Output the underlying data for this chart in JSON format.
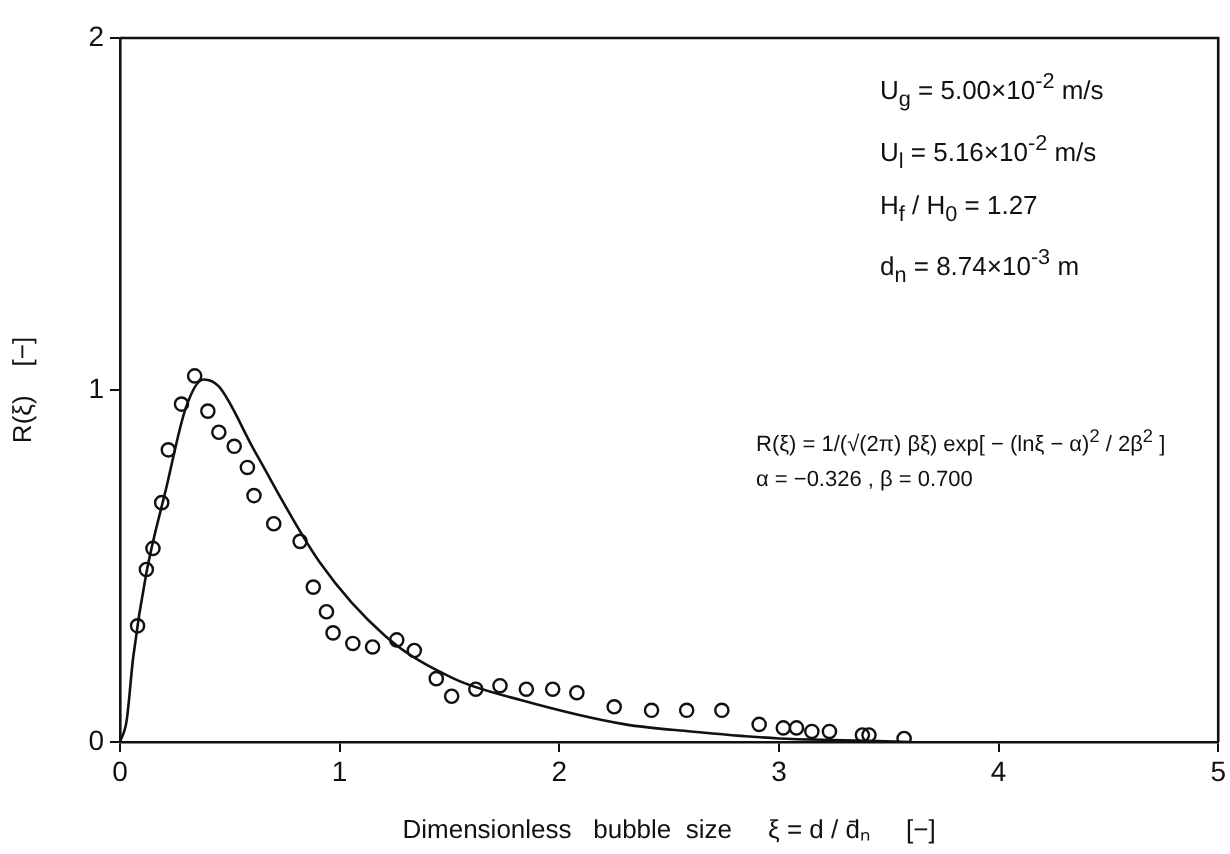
{
  "chart_data": {
    "type": "scatter",
    "xlabel": "Dimensionless   bubble  size     ξ = d / d̄ₙ     [−]",
    "ylabel": "R(ξ)    [−]",
    "xlim": [
      0,
      5
    ],
    "ylim": [
      0,
      2
    ],
    "xticks": [
      0,
      1,
      2,
      3,
      4,
      5
    ],
    "yticks": [
      0,
      1,
      2
    ],
    "grid": false,
    "legend": false,
    "marker": "circle",
    "series": [
      {
        "color": "#111111",
        "x": [
          0.08,
          0.12,
          0.15,
          0.19,
          0.22,
          0.28,
          0.34,
          0.4,
          0.45,
          0.52,
          0.58,
          0.61,
          0.7,
          0.82,
          0.88,
          0.94,
          0.97,
          1.06,
          1.15,
          1.26,
          1.34,
          1.44,
          1.51,
          1.62,
          1.73,
          1.85,
          1.97,
          2.08,
          2.25,
          2.42,
          2.58,
          2.74,
          2.91,
          3.02,
          3.08,
          3.15,
          3.23,
          3.38,
          3.41,
          3.57
        ],
        "values": [
          0.33,
          0.49,
          0.55,
          0.68,
          0.83,
          0.96,
          1.04,
          0.94,
          0.88,
          0.84,
          0.78,
          0.7,
          0.62,
          0.57,
          0.44,
          0.37,
          0.31,
          0.28,
          0.27,
          0.29,
          0.26,
          0.18,
          0.13,
          0.15,
          0.16,
          0.15,
          0.15,
          0.14,
          0.1,
          0.09,
          0.09,
          0.09,
          0.05,
          0.04,
          0.04,
          0.03,
          0.03,
          0.02,
          0.02,
          0.01
        ]
      },
      {
        "type": "line",
        "color": "#111111",
        "marker": "none",
        "line_style": "solid",
        "x": [
          0,
          0.03,
          0.06,
          0.12,
          0.21,
          0.3,
          0.38,
          0.45,
          0.61,
          0.91,
          1.21,
          1.52,
          1.82,
          2.3,
          2.6,
          3.0,
          3.3,
          3.6
        ],
        "values": [
          0,
          0.06,
          0.24,
          0.48,
          0.72,
          0.95,
          1.03,
          1.01,
          0.83,
          0.51,
          0.3,
          0.18,
          0.12,
          0.05,
          0.03,
          0.01,
          0.005,
          0
        ]
      }
    ],
    "annotations": [
      "U$_{g}$ = 5.00×10$^{-2}$  m/s",
      "U$_{l}$ = 5.16×10$^{-2}$  m/s",
      "H$_{f}$ / H$_{0}$  = 1.27",
      "d$_{n}$ = 8.74×10$^{-3}$  m",
      "R(ξ) = 1/(√(2π) βξ) exp[ − (lnξ − α)$^{2}$ / 2β$^{2}$ ]",
      "α = −0.326  ,  β = 0.700"
    ]
  }
}
